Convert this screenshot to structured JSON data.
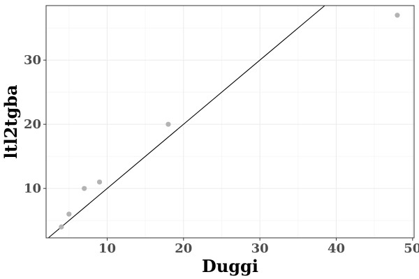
{
  "chart_data": {
    "type": "scatter",
    "title": "",
    "xlabel": "Duggi",
    "ylabel": "ltl2tgba",
    "xlim": [
      2.0,
      50.2
    ],
    "ylim": [
      2.3,
      38.5
    ],
    "x_ticks": [
      10,
      20,
      30,
      40,
      50
    ],
    "y_ticks": [
      10,
      20,
      30
    ],
    "grid": true,
    "legend": "none",
    "points": [
      {
        "x": 4,
        "y": 4
      },
      {
        "x": 5,
        "y": 6
      },
      {
        "x": 7,
        "y": 10
      },
      {
        "x": 9,
        "y": 11
      },
      {
        "x": 18,
        "y": 20
      },
      {
        "x": 48,
        "y": 37
      }
    ],
    "reference_line": {
      "slope": 1,
      "intercept": 0
    },
    "colors": {
      "point": "#b3b3b3",
      "line": "#000000",
      "grid_major": "#ebebeb",
      "grid_minor": "#f5f5f5",
      "panel_border": "#333333",
      "tick_label": "#4d4d4d"
    }
  }
}
